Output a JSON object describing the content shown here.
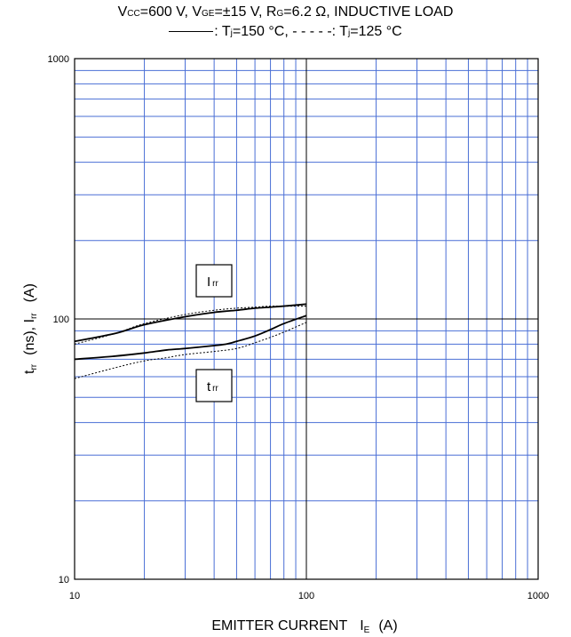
{
  "header": {
    "line1": {
      "vcc_label": "V",
      "vcc_sub": "CC",
      "vcc_value": "=600 V, V",
      "vge_sub": "GE",
      "vge_value": "=±15 V, R",
      "rg_sub": "G",
      "rg_value": "=6.2 Ω, INDUCTIVE LOAD"
    },
    "line2": {
      "solid_text": ": T",
      "solid_sub": "j",
      "solid_value": "=150 °C, ",
      "dashed_mark": "- - - - -",
      "dashed_text": ": T",
      "dashed_sub": "j",
      "dashed_value": "=125 °C"
    }
  },
  "chart_data": {
    "type": "line",
    "x_scale": "log",
    "y_scale": "log",
    "xlim": [
      10,
      1000
    ],
    "ylim": [
      10,
      1000
    ],
    "x_ticks": [
      "10",
      "100",
      "1000"
    ],
    "y_ticks": [
      "1000",
      "100",
      "10"
    ],
    "xlabel": "EMITTER CURRENT",
    "xlabel_symbol": "I",
    "xlabel_sub": "E",
    "xlabel_unit": "(A)",
    "ylabel": {
      "t": "t",
      "t_sub": "rr",
      "t_unit": "(ns), I",
      "i_sub": "rr",
      "i_unit": "(A)"
    },
    "grid": true,
    "annotations": [
      {
        "label": "I",
        "sub": "rr"
      },
      {
        "label": "t",
        "sub": "rr"
      }
    ],
    "series": [
      {
        "curve": "Irr",
        "linestyle": "solid",
        "x": [
          10,
          15,
          20,
          30,
          40,
          50,
          60,
          70,
          80,
          100
        ],
        "y": [
          82,
          88,
          95,
          102,
          106,
          108,
          110,
          111,
          112,
          114
        ]
      },
      {
        "curve": "Irr",
        "linestyle": "dashed",
        "x": [
          10,
          15,
          20,
          30,
          40,
          50,
          60,
          70,
          80,
          100
        ],
        "y": [
          80,
          88,
          96,
          104,
          108,
          110,
          111,
          112,
          112,
          112
        ]
      },
      {
        "curve": "trr",
        "linestyle": "solid",
        "x": [
          10,
          15,
          20,
          25,
          30,
          40,
          45,
          50,
          60,
          70,
          80,
          100
        ],
        "y": [
          70,
          72,
          74,
          76,
          77,
          79,
          80,
          82,
          86,
          91,
          96,
          103
        ]
      },
      {
        "curve": "trr",
        "linestyle": "dashed",
        "x": [
          10,
          15,
          20,
          25,
          30,
          40,
          50,
          60,
          70,
          80,
          100
        ],
        "y": [
          59,
          65,
          69,
          71,
          73,
          75,
          77,
          81,
          85,
          89,
          97
        ]
      }
    ],
    "colors": {
      "grid": "#4a6fd6",
      "major_grid": "#000000",
      "curve": "#000000"
    }
  }
}
